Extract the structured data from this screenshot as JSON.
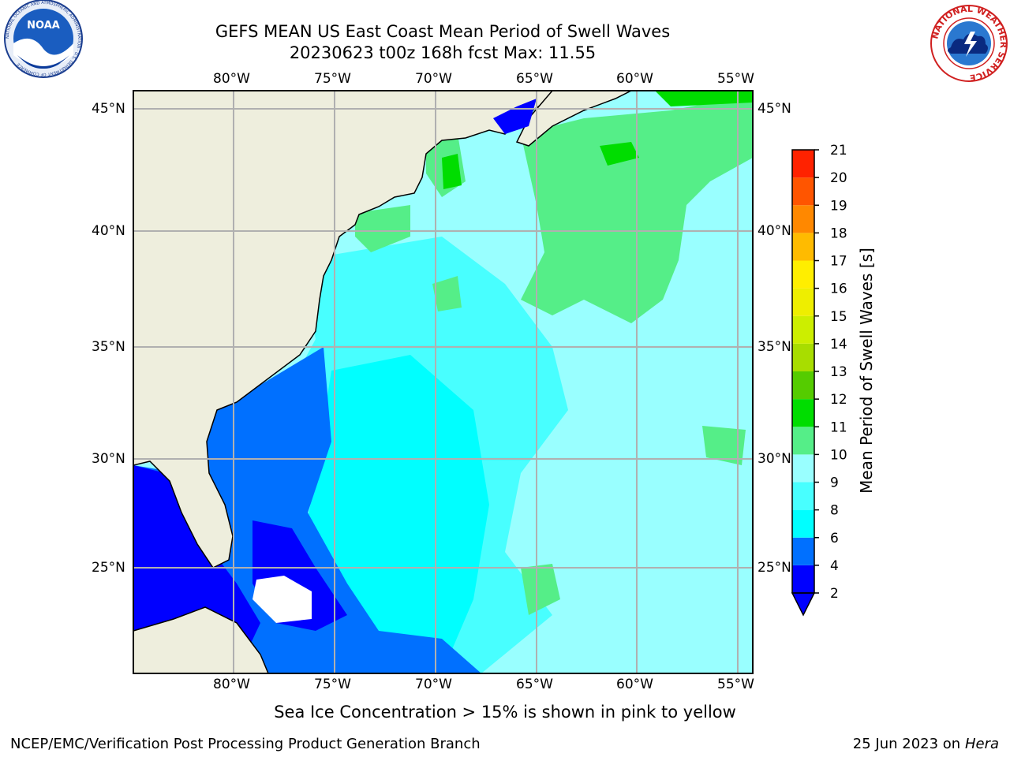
{
  "header": {
    "title_line1": "GEFS MEAN US East Coast Mean Period of Swell Waves",
    "title_line2": "20230623 t00z 168h fcst   Max: 11.55"
  },
  "logos": {
    "noaa_text": "NOAA",
    "noaa_ring_text": "NATIONAL OCEANIC AND ATMOSPHERIC ADMINISTRATION · U.S. DEPARTMENT OF COMMERCE",
    "nws_ring_text": "NATIONAL WEATHER SERVICE"
  },
  "map": {
    "lon_labels": [
      "80°W",
      "75°W",
      "70°W",
      "65°W",
      "60°W",
      "55°W"
    ],
    "lat_labels": [
      "45°N",
      "40°N",
      "35°N",
      "30°N",
      "25°N"
    ],
    "colors": {
      "land": "#eeeedd",
      "grid": "#b0b0b0",
      "ice_mask": "#ffffff"
    }
  },
  "colorbar": {
    "label": "Mean Period of Swell Waves [s]",
    "tick_labels": [
      "2",
      "4",
      "6",
      "8",
      "9",
      "10",
      "11",
      "12",
      "13",
      "14",
      "15",
      "16",
      "17",
      "18",
      "19",
      "20",
      "21"
    ],
    "colors": [
      "#0000ff",
      "#0070ff",
      "#00ffff",
      "#48ffff",
      "#99ffff",
      "#55ee88",
      "#00dd00",
      "#55cc00",
      "#a8dd00",
      "#ccee00",
      "#eeee00",
      "#ffee00",
      "#ffbb00",
      "#ff8800",
      "#ff5500",
      "#ff2200",
      "#ff0000"
    ],
    "extend": "min"
  },
  "footer": {
    "note": "Sea Ice Concentration > 15% is shown in pink to yellow",
    "credit": "NCEP/EMC/Verification Post Processing Product Generation Branch",
    "date": "25 Jun 2023 on",
    "machine": "Hera"
  }
}
